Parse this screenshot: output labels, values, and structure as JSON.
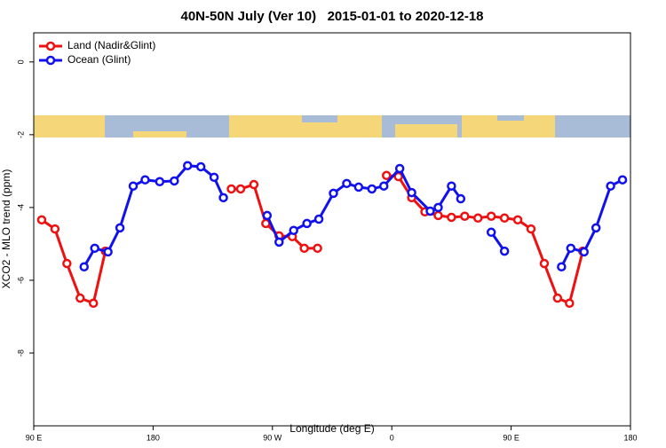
{
  "chart_data": {
    "type": "line",
    "title": "40N-50N July (Ver 10)   2015-01-01 to 2020-12-18",
    "x_label": "Longitude (deg E)",
    "y_label": "XCO2 - MLO trend (ppm)",
    "xlim": [
      90,
      540
    ],
    "xticks": [
      {
        "value": 90,
        "label": "90 E"
      },
      {
        "value": 180,
        "label": "180"
      },
      {
        "value": 270,
        "label": "90 W"
      },
      {
        "value": 360,
        "label": "0"
      },
      {
        "value": 450,
        "label": "90 E"
      },
      {
        "value": 540,
        "label": "180"
      }
    ],
    "ylim": [
      -10,
      0.8
    ],
    "yticks": [
      0,
      -2,
      -4,
      -6,
      -8
    ],
    "legend": "top-left",
    "series": [
      {
        "name": "Land (Nadir&Glint)",
        "color": "#ee1111",
        "x": [
          96,
          106,
          115,
          125,
          135,
          144,
          null,
          239,
          246,
          256,
          265,
          275,
          285,
          294,
          304,
          null,
          356,
          365,
          375,
          385,
          395,
          405,
          415,
          425,
          435,
          445,
          455,
          465,
          475,
          485,
          494,
          504
        ],
        "values": [
          -4.34,
          -4.59,
          -5.54,
          -6.49,
          -6.63,
          -5.2,
          null,
          -3.49,
          -3.49,
          -3.37,
          -4.44,
          -4.78,
          -4.8,
          -5.12,
          -5.12,
          null,
          -3.12,
          -3.15,
          -3.73,
          -4.12,
          -4.22,
          -4.27,
          -4.24,
          -4.29,
          -4.24,
          -4.29,
          -4.34,
          -4.59,
          -5.54,
          -6.49,
          -6.63,
          -5.2
        ]
      },
      {
        "name": "Ocean (Glint)",
        "color": "#1111ee",
        "x": [
          128,
          136,
          146,
          155,
          165,
          174,
          185,
          196,
          206,
          216,
          226,
          233,
          null,
          266,
          275,
          286,
          296,
          305,
          316,
          326,
          335,
          345,
          354,
          366,
          375,
          389,
          395,
          405,
          412,
          null,
          435,
          445,
          null,
          488,
          495,
          505,
          514,
          525,
          534
        ],
        "values": [
          -5.63,
          -5.12,
          -5.22,
          -4.56,
          -3.41,
          -3.24,
          -3.29,
          -3.27,
          -2.85,
          -2.88,
          -3.17,
          -3.73,
          null,
          -4.22,
          -4.95,
          -4.63,
          -4.44,
          -4.32,
          -3.61,
          -3.34,
          -3.44,
          -3.49,
          -3.41,
          -2.93,
          -3.59,
          -4.1,
          -4.0,
          -3.41,
          -3.76,
          null,
          -4.68,
          -5.2,
          null,
          -5.63,
          -5.12,
          -5.22,
          -4.56,
          -3.41,
          -3.24
        ]
      }
    ]
  }
}
